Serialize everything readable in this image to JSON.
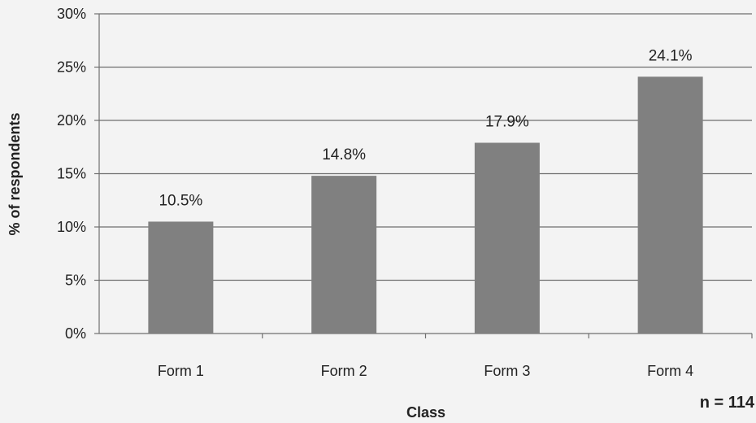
{
  "chart_data": {
    "type": "bar",
    "categories": [
      "Form 1",
      "Form 2",
      "Form 3",
      "Form 4"
    ],
    "values": [
      10.5,
      14.8,
      17.9,
      24.1
    ],
    "data_labels": [
      "10.5%",
      "14.8%",
      "17.9%",
      "24.1%"
    ],
    "ylim": [
      0,
      30
    ],
    "yticks": [
      0,
      5,
      10,
      15,
      20,
      25,
      30
    ],
    "ytick_labels": [
      "0%",
      "5%",
      "10%",
      "15%",
      "20%",
      "25%",
      "30%"
    ],
    "xlabel": "Class",
    "ylabel": "% of respondents",
    "note": "n = 114",
    "grid": true,
    "legend": "none",
    "bar_color": "#808080"
  }
}
